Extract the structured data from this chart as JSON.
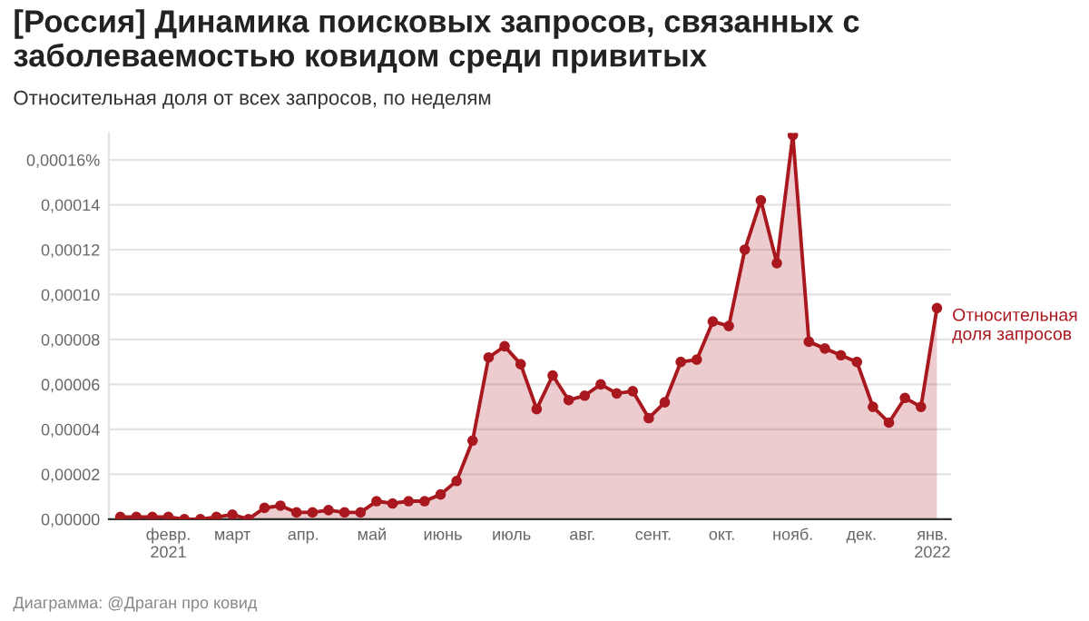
{
  "chart_data": {
    "type": "area",
    "title": "[Россия] Динамика поисковых запросов, связанных с заболеваемостью ковидом среди привитых",
    "subtitle": "Относительная доля от всех запросов, по неделям",
    "annotations": [
      "Диаграмма: @Драган про ковид"
    ],
    "x": [
      "2021-01-11",
      "2021-01-18",
      "2021-01-25",
      "2021-02-01",
      "2021-02-08",
      "2021-02-15",
      "2021-02-22",
      "2021-03-01",
      "2021-03-08",
      "2021-03-15",
      "2021-03-22",
      "2021-03-29",
      "2021-04-05",
      "2021-04-12",
      "2021-04-19",
      "2021-04-26",
      "2021-05-03",
      "2021-05-10",
      "2021-05-17",
      "2021-05-24",
      "2021-05-31",
      "2021-06-07",
      "2021-06-14",
      "2021-06-21",
      "2021-06-28",
      "2021-07-05",
      "2021-07-12",
      "2021-07-19",
      "2021-07-26",
      "2021-08-02",
      "2021-08-09",
      "2021-08-16",
      "2021-08-23",
      "2021-08-30",
      "2021-09-06",
      "2021-09-13",
      "2021-09-20",
      "2021-09-27",
      "2021-10-04",
      "2021-10-11",
      "2021-10-18",
      "2021-10-25",
      "2021-11-01",
      "2021-11-08",
      "2021-11-15",
      "2021-11-22",
      "2021-11-29",
      "2021-12-06",
      "2021-12-13",
      "2021-12-20",
      "2021-12-27",
      "2022-01-03"
    ],
    "series": [
      {
        "name": "Относительная доля запросов",
        "color": "#a8181e",
        "values": [
          1e-06,
          1e-06,
          1e-06,
          1e-06,
          0.0,
          0.0,
          1e-06,
          2e-06,
          0.0,
          5e-06,
          6e-06,
          3e-06,
          3e-06,
          4e-06,
          3e-06,
          3e-06,
          8e-06,
          7e-06,
          8e-06,
          8e-06,
          1.1e-05,
          1.7e-05,
          3.5e-05,
          7.2e-05,
          7.7e-05,
          6.9e-05,
          4.9e-05,
          6.4e-05,
          5.3e-05,
          5.5e-05,
          6e-05,
          5.6e-05,
          5.7e-05,
          4.5e-05,
          5.2e-05,
          7e-05,
          7.1e-05,
          8.8e-05,
          8.6e-05,
          0.00012,
          0.000142,
          0.000114,
          0.000171,
          7.9e-05,
          7.6e-05,
          7.3e-05,
          7e-05,
          5e-05,
          4.3e-05,
          5.4e-05,
          5e-05,
          9.4e-05
        ]
      }
    ],
    "xlim": [
      "2021-01-06",
      "2022-01-09"
    ],
    "xticks": [
      {
        "value": "2021-02-01",
        "label": "февр.\n2021"
      },
      {
        "value": "2021-03-01",
        "label": "март"
      },
      {
        "value": "2021-04-01",
        "label": "апр."
      },
      {
        "value": "2021-05-01",
        "label": "май"
      },
      {
        "value": "2021-06-01",
        "label": "июнь"
      },
      {
        "value": "2021-07-01",
        "label": "июль"
      },
      {
        "value": "2021-08-01",
        "label": "авг."
      },
      {
        "value": "2021-09-01",
        "label": "сент."
      },
      {
        "value": "2021-10-01",
        "label": "окт."
      },
      {
        "value": "2021-11-01",
        "label": "нояб."
      },
      {
        "value": "2021-12-01",
        "label": "дек."
      },
      {
        "value": "2022-01-01",
        "label": "янв.\n2022"
      }
    ],
    "ylim": [
      0,
      0.000172
    ],
    "yticks": [
      {
        "value": 0,
        "label": "0,00000"
      },
      {
        "value": 2e-05,
        "label": "0,00002"
      },
      {
        "value": 4e-05,
        "label": "0,00004"
      },
      {
        "value": 6e-05,
        "label": "0,00006"
      },
      {
        "value": 8e-05,
        "label": "0,00008"
      },
      {
        "value": 0.0001,
        "label": "0,00010"
      },
      {
        "value": 0.00012,
        "label": "0,00012"
      },
      {
        "value": 0.00014,
        "label": "0,00014"
      },
      {
        "value": 0.00016,
        "label": "0,00016%"
      }
    ],
    "grid": "y",
    "marker": "circle",
    "line_style": "solid",
    "legend": false
  }
}
